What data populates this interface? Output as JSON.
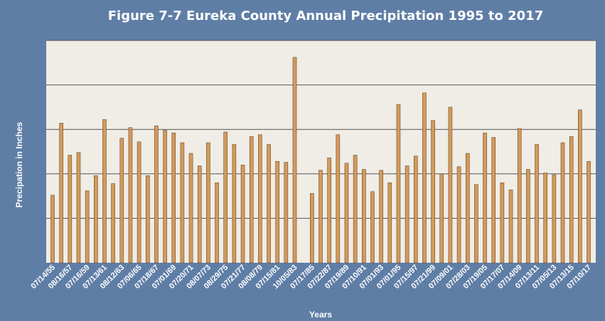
{
  "chart_data": {
    "type": "bar",
    "title": "Figure 7-7 Eureka County Annual Precipitation 1995 to 2017",
    "xlabel": "Years",
    "ylabel": "Precipation in Inches",
    "ylim": [
      0,
      25
    ],
    "grid": true,
    "legend": "none",
    "colors": {
      "background": "#5f7ea6",
      "plot_area": "#efede6",
      "bar_fill": "#d49a5c",
      "bar_stroke": "#6b4a26",
      "gridline": "#555555",
      "text": "#ffffff"
    },
    "categories": [
      "07/14/55",
      "",
      "08/16/57",
      "",
      "07/16/59",
      "",
      "07/13/61",
      "",
      "08/12/63",
      "",
      "07/06/65",
      "",
      "07/18/67",
      "",
      "07/01/69",
      "",
      "07/20/71",
      "",
      "08/07/73",
      "",
      "08/29/75",
      "",
      "07/21/77",
      "",
      "08/08/79",
      "",
      "07/15/81",
      "",
      "10/05/83",
      "",
      "07/17/85",
      "",
      "07/22/87",
      "",
      "07/19/89",
      "",
      "07/10/91",
      "",
      "07/01/93",
      "",
      "07/01/95",
      "",
      "07/15/97",
      "",
      "07/21/99",
      "",
      "07/09/01",
      "",
      "07/28/03",
      "",
      "07/19/05",
      "",
      "07/17/07",
      "",
      "07/14/09",
      "",
      "07/13/11",
      "",
      "07/05/13",
      "",
      "07/13/15",
      "",
      "07/10/17"
    ],
    "values": [
      7.6,
      15.7,
      12.1,
      12.4,
      8.1,
      9.8,
      16.1,
      8.9,
      14.0,
      15.2,
      13.6,
      9.8,
      15.4,
      14.9,
      14.6,
      13.5,
      12.3,
      10.9,
      13.5,
      9.0,
      14.7,
      13.3,
      11.0,
      14.2,
      14.4,
      13.3,
      11.4,
      11.3,
      23.1,
      null,
      7.8,
      10.4,
      11.8,
      14.4,
      11.2,
      12.1,
      10.5,
      8.0,
      10.4,
      9.0,
      17.8,
      10.9,
      12.0,
      19.1,
      16.0,
      10.0,
      17.5,
      10.8,
      12.3,
      8.8,
      14.6,
      14.1,
      9.0,
      8.2,
      15.1,
      10.5,
      13.3,
      10.1,
      9.9,
      13.5,
      14.2,
      17.2,
      11.4
    ]
  }
}
